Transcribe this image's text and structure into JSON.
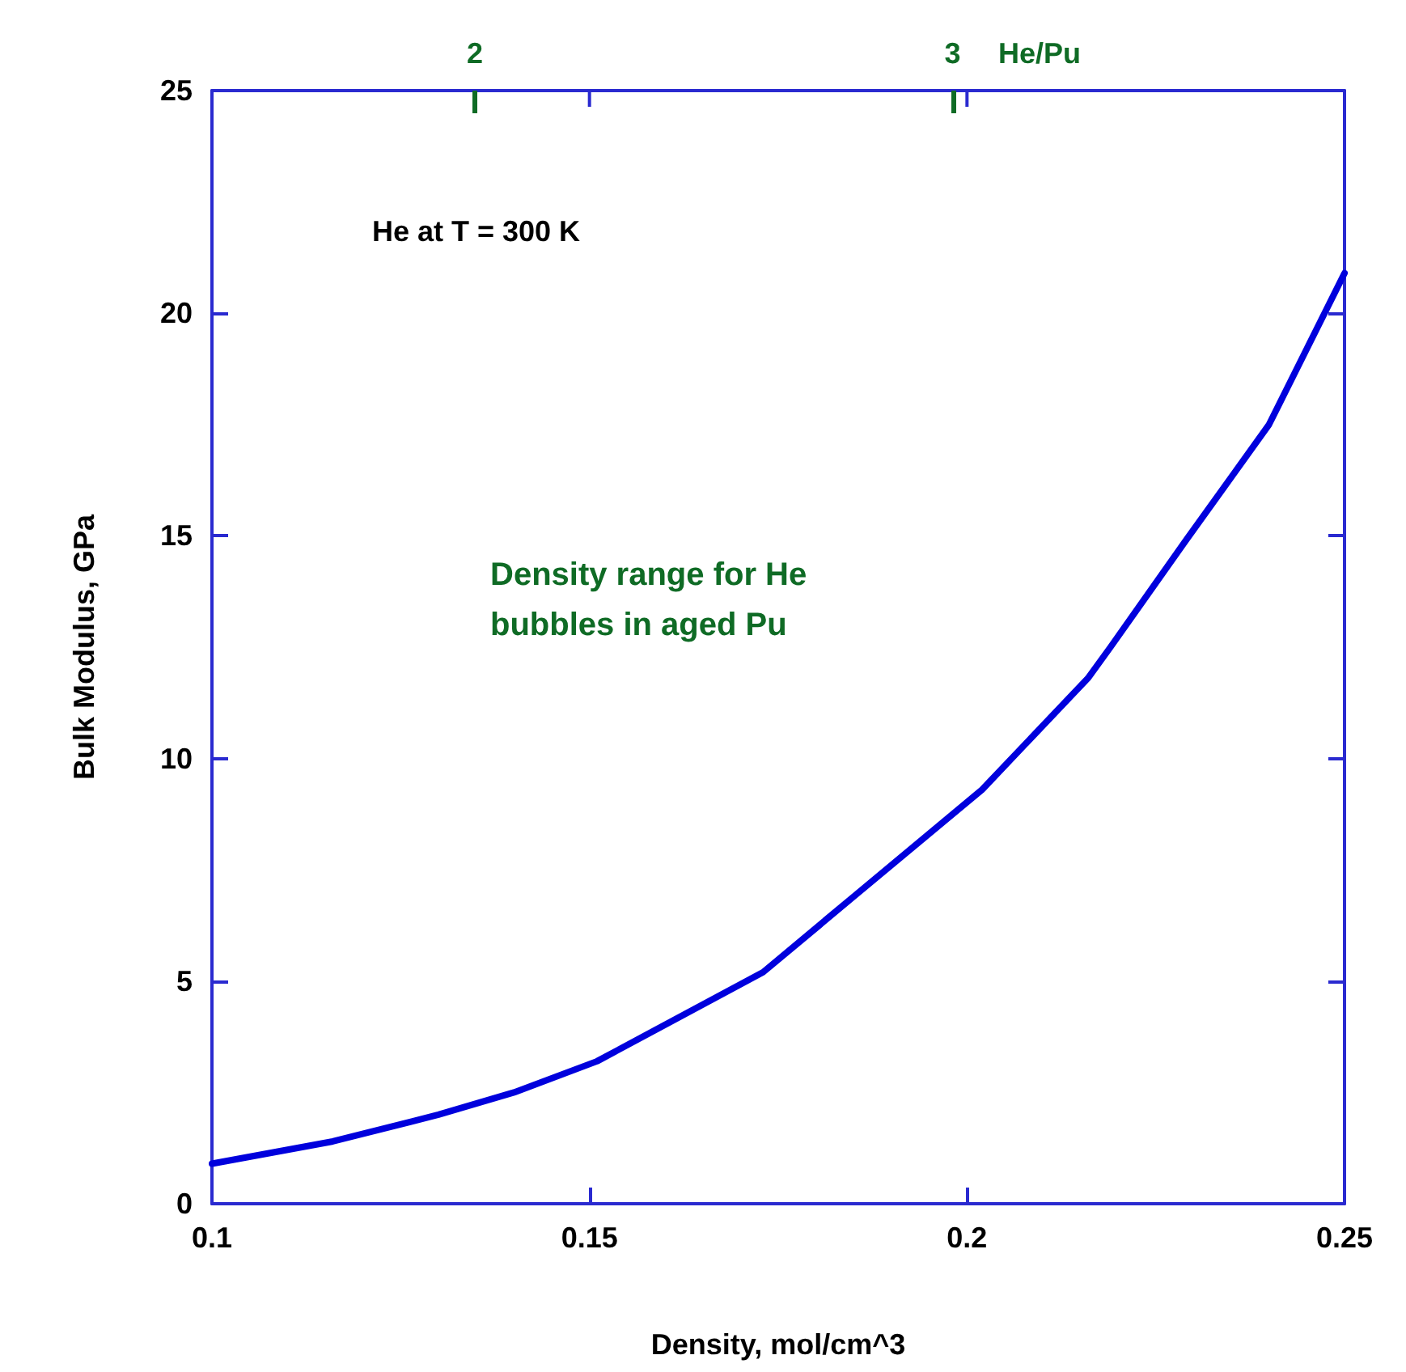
{
  "chart_data": {
    "type": "line",
    "xlabel": "Density, mol/cm^3",
    "ylabel": "Bulk Modulus, GPa",
    "x2label": "He/Pu",
    "annotations": [
      "He at T = 300 K",
      "Density range for He\nbubbles in aged Pu"
    ],
    "series": [
      {
        "color": "#0000dd",
        "x": [
          0.1,
          0.116,
          0.13,
          0.14,
          0.151,
          0.173,
          0.185,
          0.202,
          0.216,
          0.219,
          0.229,
          0.24,
          0.25
        ],
        "values": [
          0.9,
          1.4,
          2.0,
          2.5,
          3.2,
          5.2,
          6.9,
          9.3,
          11.8,
          12.5,
          14.9,
          17.5,
          20.9
        ]
      }
    ],
    "xlim": [
      0.1,
      0.25
    ],
    "xticks": [
      0.1,
      0.15,
      0.2,
      0.25
    ],
    "ylim": [
      0,
      25
    ],
    "yticks": [
      0,
      5,
      10,
      15,
      20,
      25
    ],
    "x2lim": [
      1.45,
      3.82
    ],
    "x2ticks": [
      2,
      3
    ],
    "grid": false,
    "marker": "none",
    "line_style": "solid"
  }
}
